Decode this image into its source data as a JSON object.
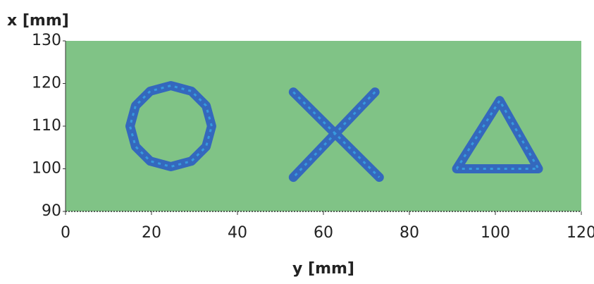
{
  "chart_data": {
    "type": "image",
    "x_label": "y [mm]",
    "y_label": "x [mm]",
    "xlim": [
      0,
      120
    ],
    "ylim": [
      90,
      130
    ],
    "xticks": [
      0,
      20,
      40,
      60,
      80,
      100,
      120
    ],
    "yticks": [
      90,
      100,
      110,
      120,
      130
    ],
    "background": "#80c386",
    "series": [
      {
        "color": "#2f63c0",
        "x": [
          34,
          32.7,
          29.3,
          24.5,
          19.7,
          16.3,
          15,
          16.3,
          19.7,
          24.5,
          29.3,
          32.7,
          34
        ],
        "y": [
          110,
          114.8,
          118.2,
          119.5,
          118.2,
          114.8,
          110,
          105.2,
          101.8,
          100.5,
          101.8,
          105.2,
          110
        ]
      },
      {
        "color": "#2f63c0",
        "x": [
          53,
          73,
          null,
          72,
          53
        ],
        "y": [
          118,
          98,
          null,
          118,
          98
        ]
      },
      {
        "color": "#2f63c0",
        "x": [
          91,
          101,
          110,
          91
        ],
        "y": [
          100,
          116,
          100,
          100
        ]
      }
    ]
  }
}
